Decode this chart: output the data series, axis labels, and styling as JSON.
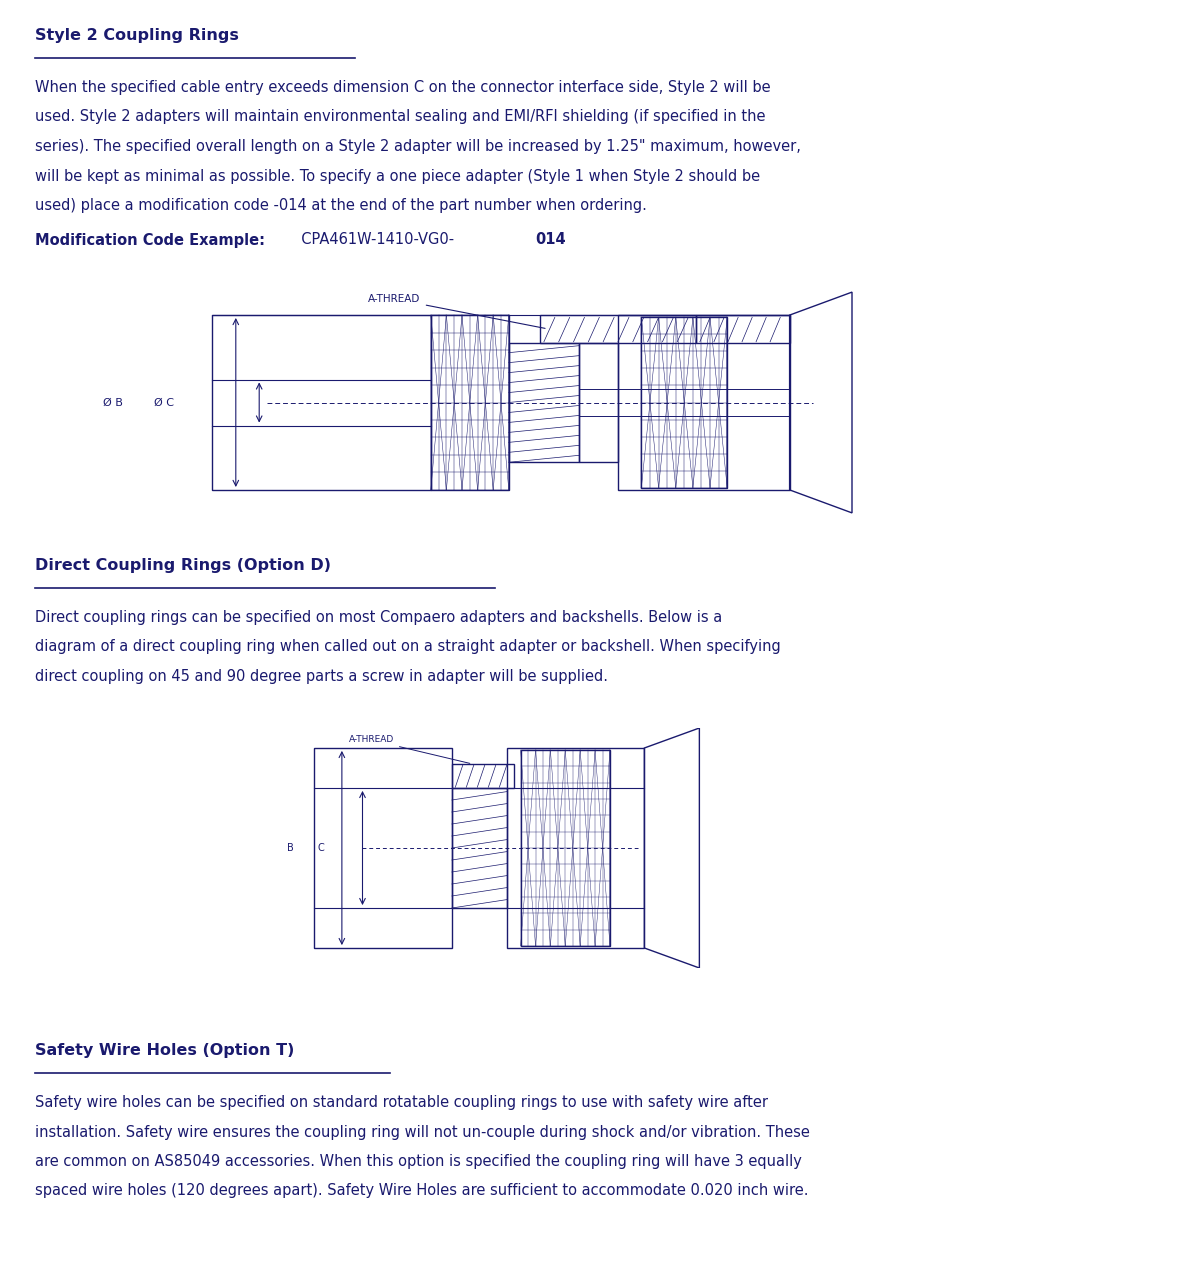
{
  "bg_color": "#ffffff",
  "text_color": "#1a1a6e",
  "section1_title": "Style 2 Coupling Rings",
  "section1_body_lines": [
    "When the specified cable entry exceeds dimension C on the connector interface side, Style 2 will be",
    "used. Style 2 adapters will maintain environmental sealing and EMI/RFI shielding (if specified in the",
    "series). The specified overall length on a Style 2 adapter will be increased by 1.25\" maximum, however,",
    "will be kept as minimal as possible. To specify a one piece adapter (Style 1 when Style 2 should be",
    "used) place a modification code -014 at the end of the part number when ordering."
  ],
  "section1_mod_label": "Modification Code Example:",
  "section1_mod_code_normal": "  CPA461W-1410-VG0-",
  "section1_mod_code_bold": "014",
  "section2_title": "Direct Coupling Rings (Option D)",
  "section2_body_lines": [
    "Direct coupling rings can be specified on most Compaero adapters and backshells. Below is a",
    "diagram of a direct coupling ring when called out on a straight adapter or backshell. When specifying",
    "direct coupling on 45 and 90 degree parts a screw in adapter will be supplied."
  ],
  "section3_title": "Safety Wire Holes (Option T)",
  "section3_body_lines": [
    "Safety wire holes can be specified on standard rotatable coupling rings to use with safety wire after",
    "installation. Safety wire ensures the coupling ring will not un-couple during shock and/or vibration. These",
    "are common on AS85049 accessories. When this option is specified the coupling ring will have 3 equally",
    "spaced wire holes (120 degrees apart). Safety Wire Holes are sufficient to accommodate 0.020 inch wire."
  ],
  "line_color": "#1a1a6e",
  "text_body_fontsize": 10.5,
  "text_heading_fontsize": 11.5,
  "fig_width": 11.81,
  "fig_height": 12.77,
  "dpi": 100
}
